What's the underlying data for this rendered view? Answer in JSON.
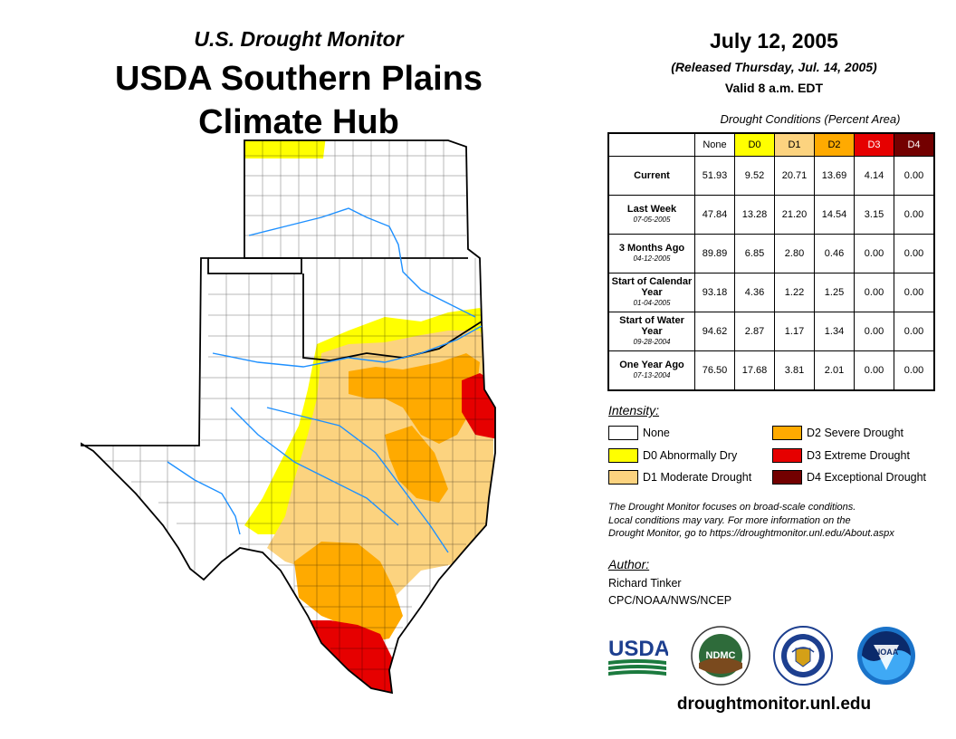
{
  "header": {
    "subtitle": "U.S. Drought Monitor",
    "title_line1": "USDA Southern Plains",
    "title_line2": "Climate Hub"
  },
  "date_block": {
    "date": "July 12, 2005",
    "released": "(Released Thursday, Jul. 14, 2005)",
    "valid": "Valid 8 a.m. EDT"
  },
  "stats": {
    "title": "Drought Conditions (Percent Area)",
    "columns": [
      {
        "label": "None",
        "color": "#ffffff",
        "text_color": "#000000"
      },
      {
        "label": "D0",
        "color": "#ffff00",
        "text_color": "#000000"
      },
      {
        "label": "D1",
        "color": "#fcd37f",
        "text_color": "#000000"
      },
      {
        "label": "D2",
        "color": "#ffaa00",
        "text_color": "#000000"
      },
      {
        "label": "D3",
        "color": "#e60000",
        "text_color": "#ffffff"
      },
      {
        "label": "D4",
        "color": "#730000",
        "text_color": "#ffffff"
      }
    ],
    "rows": [
      {
        "label": "Current",
        "sub": "",
        "values": [
          "51.93",
          "9.52",
          "20.71",
          "13.69",
          "4.14",
          "0.00"
        ]
      },
      {
        "label": "Last Week",
        "sub": "07-05-2005",
        "values": [
          "47.84",
          "13.28",
          "21.20",
          "14.54",
          "3.15",
          "0.00"
        ]
      },
      {
        "label": "3 Months Ago",
        "sub": "04-12-2005",
        "values": [
          "89.89",
          "6.85",
          "2.80",
          "0.46",
          "0.00",
          "0.00"
        ]
      },
      {
        "label": "Start of Calendar Year",
        "sub": "01-04-2005",
        "values": [
          "93.18",
          "4.36",
          "1.22",
          "1.25",
          "0.00",
          "0.00"
        ]
      },
      {
        "label": "Start of Water Year",
        "sub": "09-28-2004",
        "values": [
          "94.62",
          "2.87",
          "1.17",
          "1.34",
          "0.00",
          "0.00"
        ]
      },
      {
        "label": "One Year Ago",
        "sub": "07-13-2004",
        "values": [
          "76.50",
          "17.68",
          "3.81",
          "2.01",
          "0.00",
          "0.00"
        ]
      }
    ]
  },
  "legend": {
    "heading": "Intensity:",
    "items": [
      {
        "label": "None",
        "color": "#ffffff"
      },
      {
        "label": "D0 Abnormally Dry",
        "color": "#ffff00"
      },
      {
        "label": "D1 Moderate Drought",
        "color": "#fcd37f"
      },
      {
        "label": "D2 Severe Drought",
        "color": "#ffaa00"
      },
      {
        "label": "D3 Extreme Drought",
        "color": "#e60000"
      },
      {
        "label": "D4 Exceptional Drought",
        "color": "#730000"
      }
    ]
  },
  "note": {
    "line1": "The Drought Monitor focuses on broad-scale conditions.",
    "line2": "Local conditions may vary. For more information on the",
    "line3": "Drought Monitor, go to https://droughtmonitor.unl.edu/About.aspx"
  },
  "author": {
    "heading": "Author:",
    "name": "Richard Tinker",
    "org": "CPC/NOAA/NWS/NCEP"
  },
  "logos": {
    "usda": "USDA",
    "ndmc": "NDMC",
    "noaa": "NOAA"
  },
  "footer": {
    "url": "droughtmonitor.unl.edu"
  }
}
